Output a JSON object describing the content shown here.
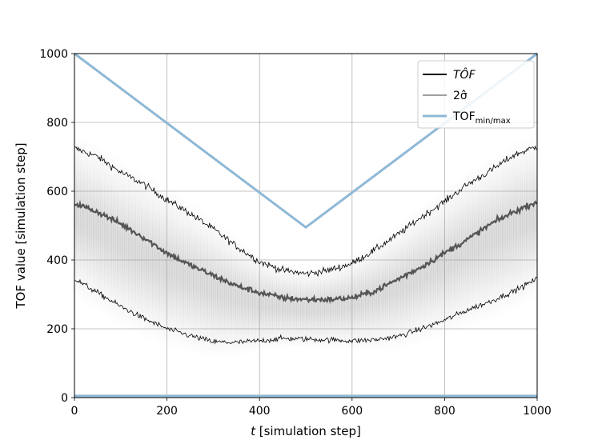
{
  "chart_data": {
    "type": "line",
    "title": "",
    "xlabel_italic": "t",
    "xlabel_rest": " [simulation step]",
    "ylabel": "TOF value [simulation step]",
    "xlim": [
      0,
      1000
    ],
    "ylim": [
      0,
      1000
    ],
    "x_ticks": [
      0,
      200,
      400,
      600,
      800,
      1000
    ],
    "y_ticks": [
      0,
      200,
      400,
      600,
      800,
      1000
    ],
    "x_tick_labels": [
      "0",
      "200",
      "400",
      "600",
      "800",
      "1000"
    ],
    "y_tick_labels": [
      "0",
      "200",
      "400",
      "600",
      "800",
      "1000"
    ],
    "grid": true,
    "legend_placement": "top-right",
    "legend": [
      {
        "label_main": "TÔF",
        "label_sub": "",
        "style": "thick-black"
      },
      {
        "label_main": "2σ̂",
        "label_sub": "",
        "style": "thin-black"
      },
      {
        "label_main": "TOF",
        "label_sub": "min/max",
        "style": "blue"
      }
    ],
    "colors": {
      "tof_minmax": "#8fb8d6",
      "mean": "#555555",
      "band": "#000000",
      "shade": "#999999"
    },
    "series": [
      {
        "id": "mean",
        "x": [
          0,
          50,
          100,
          150,
          200,
          250,
          300,
          350,
          400,
          450,
          500,
          550,
          600,
          650,
          700,
          750,
          800,
          850,
          900,
          950,
          1000
        ],
        "values": [
          565,
          540,
          505,
          465,
          420,
          385,
          355,
          325,
          305,
          290,
          285,
          285,
          290,
          310,
          345,
          380,
          420,
          460,
          505,
          540,
          570
        ]
      },
      {
        "id": "upper",
        "x": [
          0,
          50,
          100,
          150,
          200,
          250,
          300,
          350,
          400,
          450,
          500,
          550,
          600,
          650,
          700,
          750,
          800,
          850,
          900,
          950,
          1000
        ],
        "values": [
          725,
          700,
          655,
          620,
          575,
          535,
          490,
          440,
          395,
          370,
          360,
          370,
          390,
          430,
          475,
          525,
          570,
          620,
          660,
          705,
          730
        ]
      },
      {
        "id": "lower",
        "x": [
          0,
          50,
          100,
          150,
          200,
          250,
          300,
          350,
          400,
          450,
          500,
          550,
          600,
          650,
          700,
          750,
          800,
          850,
          900,
          950,
          1000
        ],
        "values": [
          345,
          305,
          265,
          230,
          200,
          180,
          162,
          160,
          165,
          172,
          170,
          168,
          165,
          168,
          178,
          200,
          225,
          255,
          280,
          310,
          345
        ]
      },
      {
        "id": "tof_max",
        "x": [
          0,
          500,
          1000
        ],
        "values": [
          1000,
          495,
          1000
        ]
      },
      {
        "id": "tof_min",
        "x": [
          0,
          1000
        ],
        "values": [
          5,
          5
        ]
      }
    ]
  }
}
